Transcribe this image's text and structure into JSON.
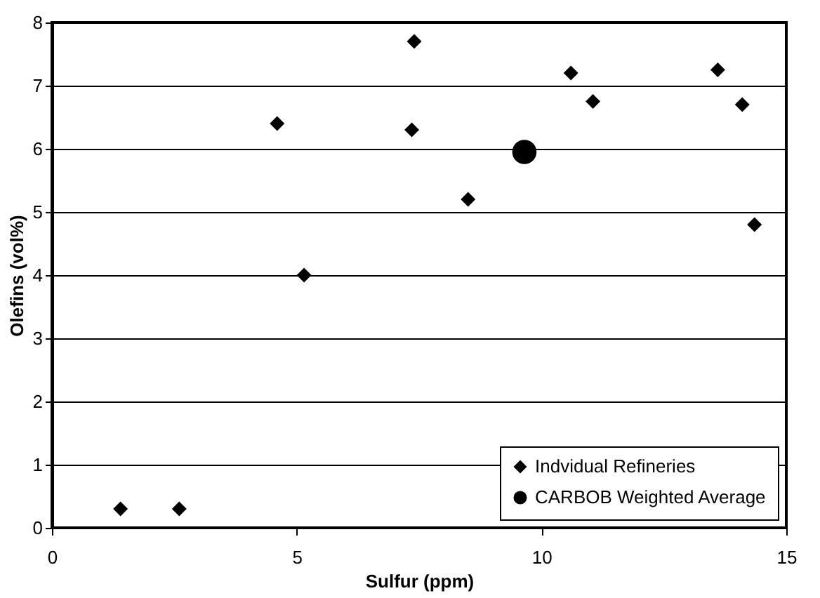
{
  "chart_data": {
    "type": "scatter",
    "xlabel": "Sulfur (ppm)",
    "ylabel": "Olefins (vol%)",
    "xlim": [
      0,
      15
    ],
    "xticks": [
      0,
      5,
      10,
      15
    ],
    "ylim": [
      0,
      8
    ],
    "yticks": [
      0,
      1,
      2,
      3,
      4,
      5,
      6,
      7,
      8
    ],
    "grid": "y",
    "legend": "bottom right",
    "series": [
      {
        "name": "Indvidual Refineries",
        "color": "#000000",
        "marker": "diamond",
        "x": [
          1.4,
          2.6,
          4.6,
          5.15,
          7.4,
          7.35,
          8.5,
          10.6,
          11.05,
          13.6,
          14.1,
          14.35
        ],
        "values": [
          0.3,
          0.3,
          6.4,
          4.0,
          7.7,
          6.3,
          5.2,
          7.2,
          6.75,
          7.25,
          6.7,
          4.8
        ]
      },
      {
        "name": "CARBOB Weighted Average",
        "color": "#000000",
        "marker": "circle",
        "x": [
          9.65
        ],
        "values": [
          5.95
        ]
      }
    ]
  }
}
